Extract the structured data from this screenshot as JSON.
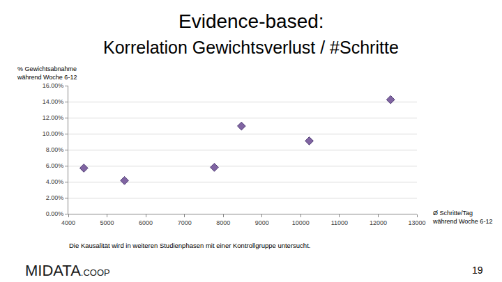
{
  "chart_data": {
    "type": "scatter",
    "title": "Evidence-based:",
    "subtitle": "Korrelation Gewichtsverlust / #Schritte",
    "y_label": [
      "% Gewichtsabnahme",
      "während Woche 6-12"
    ],
    "x_label": [
      "Ø Schritte/Tag",
      "während Woche 6-12"
    ],
    "x": [
      4400,
      5450,
      7770,
      8470,
      10220,
      12320
    ],
    "values": [
      5.7,
      4.15,
      5.8,
      10.95,
      9.1,
      14.25
    ],
    "color": "#8064a2",
    "marker": "diamond",
    "xlim": [
      4000,
      13000
    ],
    "xticks": [
      4000,
      5000,
      6000,
      7000,
      8000,
      9000,
      10000,
      11000,
      12000,
      13000
    ],
    "ylim": [
      0,
      16
    ],
    "yticks": [
      {
        "value": 0,
        "label": "0.00%"
      },
      {
        "value": 2,
        "label": "2.00%"
      },
      {
        "value": 4,
        "label": "4.00%"
      },
      {
        "value": 6,
        "label": "6.00%"
      },
      {
        "value": 8,
        "label": "8.00%"
      },
      {
        "value": 10,
        "label": "10.00%"
      },
      {
        "value": 12,
        "label": "12.00%"
      },
      {
        "value": 14,
        "label": "14.00%"
      },
      {
        "value": 16,
        "label": "16.00%"
      }
    ],
    "grid": true,
    "annotations": [
      {
        "text": "Die Kausalität wird in weiteren Studienphasen mit einer Kontrollgruppe untersucht."
      }
    ]
  },
  "slide": {
    "brand": "MIDATA",
    "brand_suffix": ".COOP",
    "page_number": "19"
  }
}
